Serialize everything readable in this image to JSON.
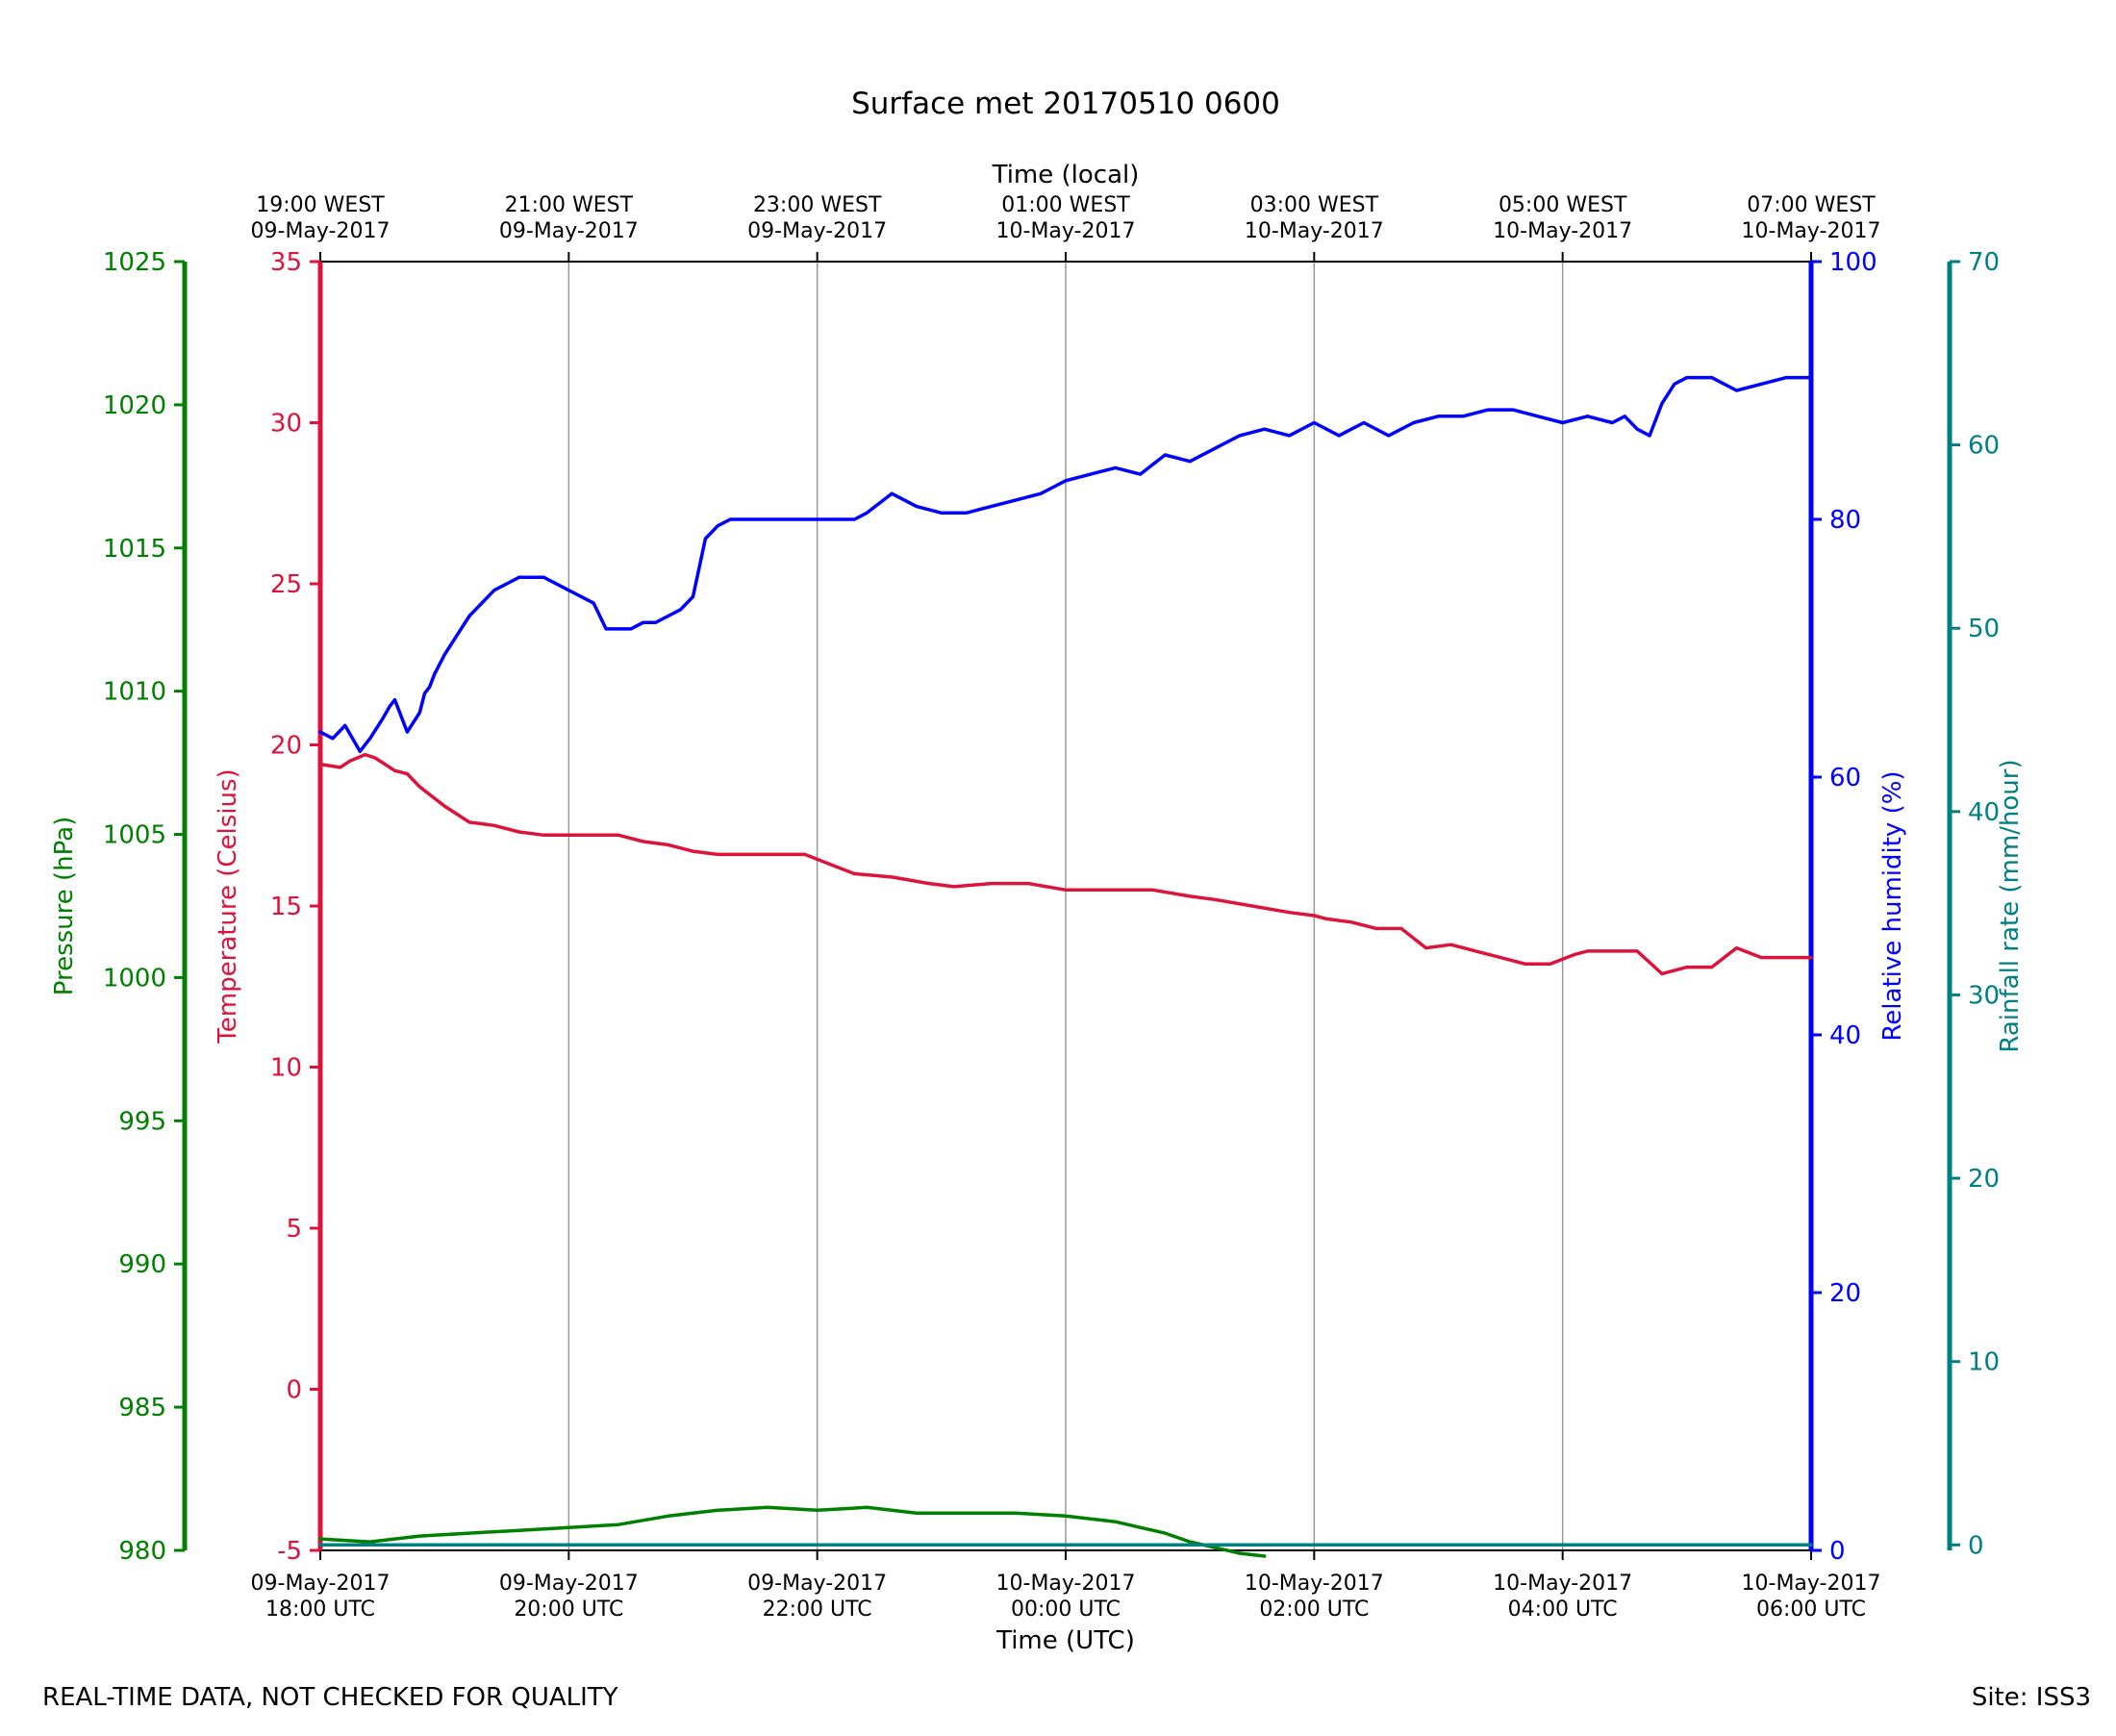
{
  "footer": {
    "note": "REAL-TIME DATA, NOT CHECKED FOR QUALITY",
    "site": "Site: ISS3"
  },
  "colors": {
    "temperature": "#dc143c",
    "humidity": "#0000ff",
    "pressure": "#008000",
    "rainfall": "#008080",
    "grid": "#999999",
    "axis": "#000000"
  },
  "chart_data": {
    "type": "line",
    "title": "Surface met 20170510 0600",
    "xlabel": "Time (UTC)",
    "x2label": "Time (local)",
    "xlim": [
      0,
      6
    ],
    "x_ticks": [
      {
        "x": 0,
        "utc": [
          "09-May-2017",
          "18:00 UTC"
        ],
        "local": [
          "19:00 WEST",
          "09-May-2017"
        ]
      },
      {
        "x": 1,
        "utc": [
          "09-May-2017",
          "20:00 UTC"
        ],
        "local": [
          "21:00 WEST",
          "09-May-2017"
        ]
      },
      {
        "x": 2,
        "utc": [
          "09-May-2017",
          "22:00 UTC"
        ],
        "local": [
          "23:00 WEST",
          "09-May-2017"
        ]
      },
      {
        "x": 3,
        "utc": [
          "10-May-2017",
          "00:00 UTC"
        ],
        "local": [
          "01:00 WEST",
          "10-May-2017"
        ]
      },
      {
        "x": 4,
        "utc": [
          "10-May-2017",
          "02:00 UTC"
        ],
        "local": [
          "03:00 WEST",
          "10-May-2017"
        ]
      },
      {
        "x": 5,
        "utc": [
          "10-May-2017",
          "04:00 UTC"
        ],
        "local": [
          "05:00 WEST",
          "10-May-2017"
        ]
      },
      {
        "x": 6,
        "utc": [
          "10-May-2017",
          "06:00 UTC"
        ],
        "local": [
          "07:00 WEST",
          "10-May-2017"
        ]
      }
    ],
    "grid": true,
    "axes": {
      "pressure": {
        "label": "Pressure (hPa)",
        "ylim": [
          980,
          1025
        ],
        "ticks": [
          980,
          985,
          990,
          995,
          1000,
          1005,
          1010,
          1015,
          1020,
          1025
        ]
      },
      "temperature": {
        "label": "Temperature (Celsius)",
        "ylim": [
          -5,
          35
        ],
        "ticks": [
          -5,
          0,
          5,
          10,
          15,
          20,
          25,
          30,
          35
        ]
      },
      "humidity": {
        "label": "Relative humidity (%)",
        "ylim": [
          0,
          100
        ],
        "ticks": [
          0,
          20,
          40,
          60,
          80,
          100
        ]
      },
      "rainfall": {
        "label": "Rainfall rate (mm/hour)",
        "ylim": [
          -0.3,
          70
        ],
        "ticks": [
          0,
          10,
          20,
          30,
          40,
          50,
          60,
          70
        ]
      }
    },
    "series": [
      {
        "axis": "temperature",
        "x": [
          0,
          0.08,
          0.12,
          0.18,
          0.22,
          0.26,
          0.3,
          0.35,
          0.4,
          0.45,
          0.5,
          0.6,
          0.7,
          0.8,
          0.9,
          1.0,
          1.2,
          1.3,
          1.4,
          1.5,
          1.6,
          1.8,
          1.95,
          2.05,
          2.15,
          2.3,
          2.45,
          2.55,
          2.7,
          2.85,
          3.0,
          3.2,
          3.35,
          3.5,
          3.6,
          3.75,
          3.9,
          4.0,
          4.05,
          4.15,
          4.25,
          4.35,
          4.45,
          4.55,
          4.65,
          4.75,
          4.85,
          4.95,
          5.05,
          5.1,
          5.15,
          5.2,
          5.25,
          5.3,
          5.4,
          5.5,
          5.6,
          5.7,
          5.8,
          5.9,
          6.0
        ],
        "y": [
          19.4,
          19.3,
          19.5,
          19.7,
          19.6,
          19.4,
          19.2,
          19.1,
          18.7,
          18.4,
          18.1,
          17.6,
          17.5,
          17.3,
          17.2,
          17.2,
          17.2,
          17.0,
          16.9,
          16.7,
          16.6,
          16.6,
          16.6,
          16.3,
          16.0,
          15.9,
          15.7,
          15.6,
          15.7,
          15.7,
          15.5,
          15.5,
          15.5,
          15.3,
          15.2,
          15.0,
          14.8,
          14.7,
          14.6,
          14.5,
          14.3,
          14.3,
          13.7,
          13.8,
          13.6,
          13.4,
          13.2,
          13.2,
          13.5,
          13.6,
          13.6,
          13.6,
          13.6,
          13.6,
          12.9,
          13.1,
          13.1,
          13.7,
          13.4,
          13.4,
          13.4
        ]
      },
      {
        "axis": "humidity",
        "x": [
          0,
          0.05,
          0.1,
          0.16,
          0.2,
          0.25,
          0.28,
          0.3,
          0.35,
          0.4,
          0.42,
          0.44,
          0.46,
          0.5,
          0.55,
          0.6,
          0.65,
          0.7,
          0.75,
          0.8,
          0.9,
          1.0,
          1.1,
          1.15,
          1.2,
          1.25,
          1.3,
          1.35,
          1.4,
          1.45,
          1.5,
          1.55,
          1.6,
          1.65,
          1.7,
          1.75,
          1.8,
          1.85,
          1.9,
          1.95,
          2.0,
          2.05,
          2.1,
          2.15,
          2.2,
          2.3,
          2.4,
          2.5,
          2.6,
          2.7,
          2.8,
          2.9,
          2.95,
          3.0,
          3.1,
          3.2,
          3.3,
          3.4,
          3.5,
          3.6,
          3.7,
          3.8,
          3.9,
          4.0,
          4.1,
          4.2,
          4.3,
          4.4,
          4.5,
          4.6,
          4.7,
          4.8,
          4.9,
          5.0,
          5.1,
          5.2,
          5.25,
          5.3,
          5.35,
          5.4,
          5.45,
          5.5,
          5.6,
          5.7,
          5.8,
          5.9,
          6.0
        ],
        "y": [
          63.5,
          63.0,
          64.0,
          62.0,
          63.0,
          64.5,
          65.5,
          66.0,
          63.5,
          65.0,
          66.5,
          67.0,
          68.0,
          69.5,
          71.0,
          72.5,
          73.5,
          74.5,
          75.0,
          75.5,
          75.5,
          74.5,
          73.5,
          71.5,
          71.5,
          71.5,
          72.0,
          72.0,
          72.5,
          73.0,
          74.0,
          78.5,
          79.5,
          80.0,
          80.0,
          80.0,
          80.0,
          80.0,
          80.0,
          80.0,
          80.0,
          80.0,
          80.0,
          80.0,
          80.5,
          82.0,
          81.0,
          80.5,
          80.5,
          81.0,
          81.5,
          82.0,
          82.5,
          83.0,
          83.5,
          84.0,
          83.5,
          85.0,
          84.5,
          85.5,
          86.5,
          87.0,
          86.5,
          87.5,
          86.5,
          87.5,
          86.5,
          87.5,
          88.0,
          88.0,
          88.5,
          88.5,
          88.0,
          87.5,
          88.0,
          87.5,
          88.0,
          87.0,
          86.5,
          89.0,
          90.5,
          91.0,
          91.0,
          90.0,
          90.5,
          91.0,
          91.0
        ]
      },
      {
        "axis": "pressure",
        "x": [
          0,
          0.2,
          0.4,
          0.6,
          0.8,
          1.0,
          1.2,
          1.4,
          1.6,
          1.8,
          2.0,
          2.2,
          2.4,
          2.6,
          2.8,
          3.0,
          3.1,
          3.2,
          3.3,
          3.4,
          3.5,
          3.6,
          3.7,
          3.8
        ],
        "y": [
          980.4,
          980.3,
          980.5,
          980.6,
          980.7,
          980.8,
          980.9,
          981.2,
          981.4,
          981.5,
          981.4,
          981.5,
          981.3,
          981.3,
          981.3,
          981.2,
          981.1,
          981.0,
          980.8,
          980.6,
          980.3,
          980.1,
          979.9,
          979.8
        ]
      },
      {
        "axis": "rainfall",
        "x": [
          0,
          6.0
        ],
        "y": [
          0,
          0
        ]
      }
    ]
  }
}
